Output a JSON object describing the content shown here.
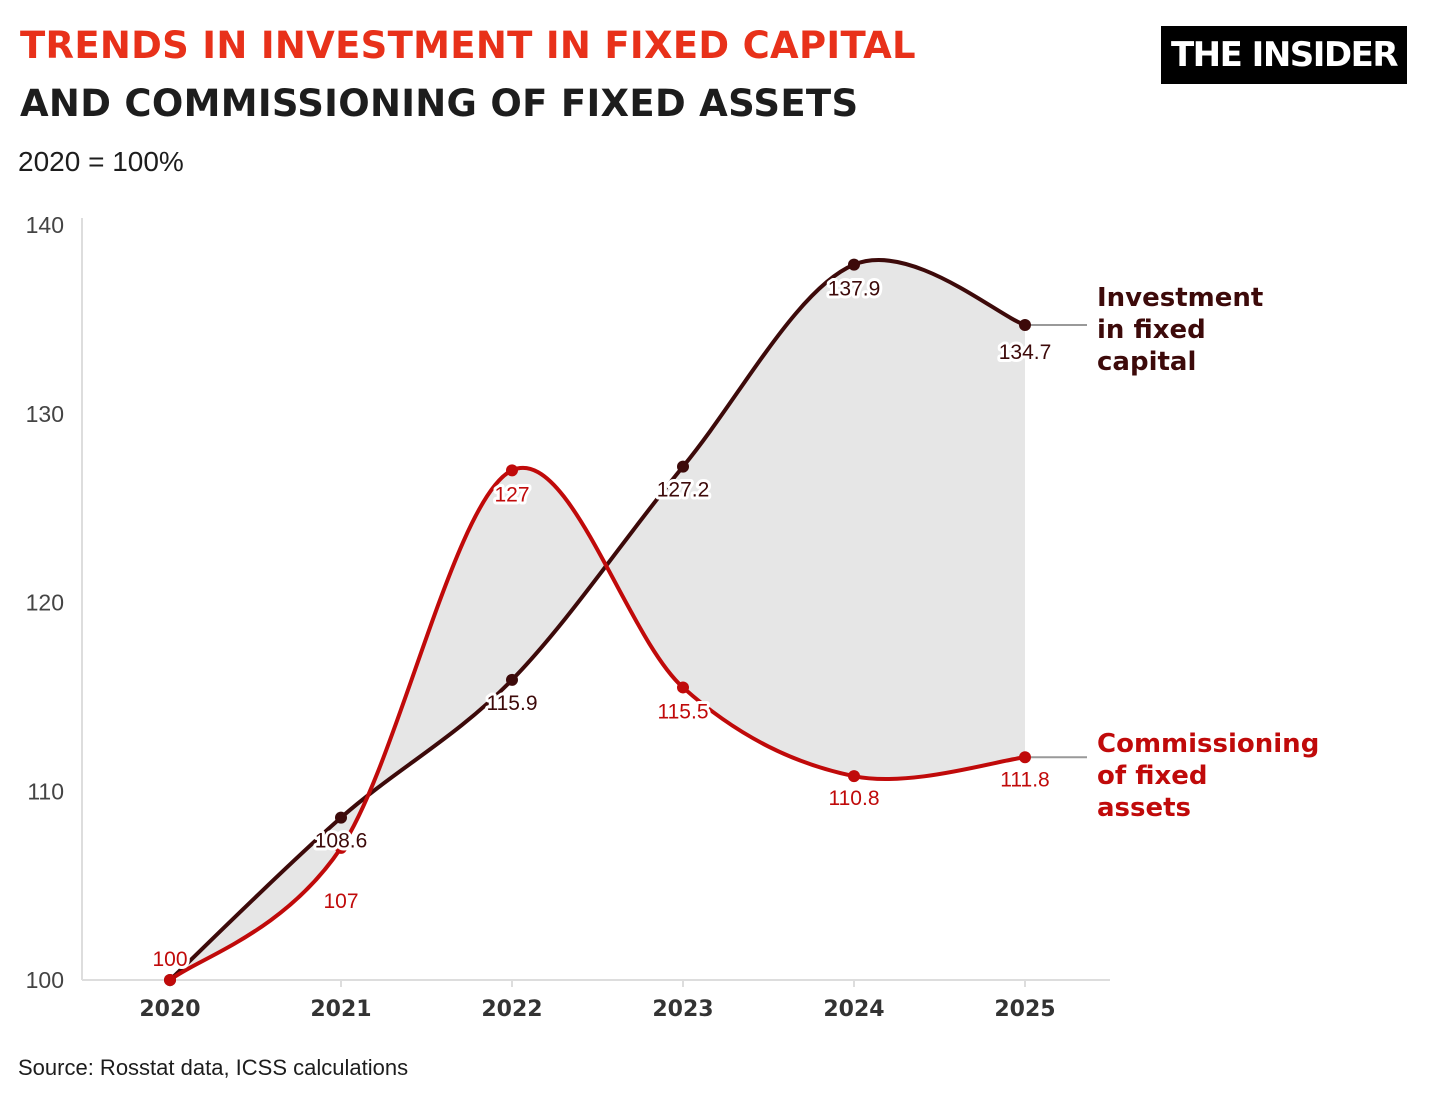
{
  "header": {
    "title_line1": "TRENDS IN INVESTMENT IN FIXED CAPITAL",
    "title_line2": "AND COMMISSIONING OF FIXED ASSETS",
    "subtitle": "2020 = 100%",
    "logo": "THE INSIDER"
  },
  "footer": {
    "source": "Source: Rosstat data, ICSS calculations"
  },
  "colors": {
    "title_accent": "#e8311a",
    "investment": "#3d0a0a",
    "commissioning": "#c00a0a",
    "fill_between": "#e6e6e6",
    "axis": "#dddddd"
  },
  "chart_data": {
    "type": "line",
    "title": "",
    "xlabel": "",
    "ylabel": "",
    "x": [
      "2020",
      "2021",
      "2022",
      "2023",
      "2024",
      "2025"
    ],
    "ylim": [
      100,
      140
    ],
    "yticks": [
      100,
      110,
      120,
      130,
      140
    ],
    "grid": false,
    "fill_between_series": true,
    "series": [
      {
        "name_lines": [
          "Investment",
          "in fixed",
          "capital"
        ],
        "values": [
          100,
          108.6,
          115.9,
          127.2,
          137.9,
          134.7
        ],
        "labels": [
          "",
          "108.6",
          "115.9",
          "127.2",
          "137.9",
          "134.7"
        ],
        "color": "#3d0a0a"
      },
      {
        "name_lines": [
          "Commissioning",
          "of fixed",
          "assets"
        ],
        "values": [
          100,
          107,
          127,
          115.5,
          110.8,
          111.8
        ],
        "labels": [
          "100",
          "107",
          "127",
          "115.5",
          "110.8",
          "111.8"
        ],
        "color": "#c00a0a"
      }
    ]
  }
}
